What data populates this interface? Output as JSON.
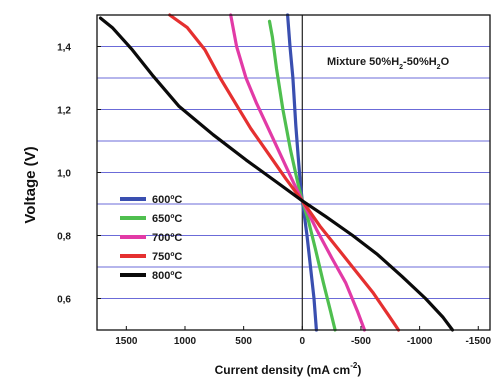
{
  "chart_data": {
    "type": "line",
    "xlabel": "Current density (mA cm",
    "xlabel_superscript": "-2",
    "xlabel_suffix": ")",
    "ylabel": "Voltage (V)",
    "x_reversed": true,
    "xlim": [
      1750,
      -1600
    ],
    "ylim": [
      0.5,
      1.5
    ],
    "x_ticks": [
      1500,
      1000,
      500,
      0,
      -500,
      -1000,
      -1500
    ],
    "y_ticks": [
      0.6,
      0.8,
      1.0,
      1.2,
      1.4
    ],
    "y_tick_labels": [
      "0,6",
      "0,8",
      "1,0",
      "1,2",
      "1,4"
    ],
    "x_tick_labels": [
      "1500",
      "1000",
      "500",
      "0",
      "-500",
      "-1000",
      "-1500"
    ],
    "horizontal_gridlines": [
      0.6,
      0.7,
      0.8,
      0.9,
      1.0,
      1.1,
      1.2,
      1.3,
      1.4
    ],
    "grid_color": "#6b6bd8",
    "zero_line": 0,
    "annotation": {
      "parts": [
        {
          "text": "Mixture 50%H",
          "sub": false
        },
        {
          "text": "2",
          "sub": true
        },
        {
          "text": "-50%H",
          "sub": false
        },
        {
          "text": "2",
          "sub": true
        },
        {
          "text": "O",
          "sub": false
        }
      ]
    },
    "legend_position": "lower-left",
    "series": [
      {
        "name": "600ºC",
        "color": "#3a4fb0",
        "points": [
          [
            -120,
            0.5
          ],
          [
            -100,
            0.6
          ],
          [
            -70,
            0.7
          ],
          [
            -40,
            0.8
          ],
          [
            -15,
            0.87
          ],
          [
            0,
            0.91
          ],
          [
            15,
            0.96
          ],
          [
            35,
            1.05
          ],
          [
            55,
            1.15
          ],
          [
            80,
            1.3
          ],
          [
            105,
            1.4
          ],
          [
            125,
            1.5
          ]
        ]
      },
      {
        "name": "650ºC",
        "color": "#4fbf4f",
        "points": [
          [
            -280,
            0.5
          ],
          [
            -240,
            0.56
          ],
          [
            -180,
            0.65
          ],
          [
            -110,
            0.76
          ],
          [
            -50,
            0.85
          ],
          [
            0,
            0.91
          ],
          [
            40,
            0.97
          ],
          [
            100,
            1.07
          ],
          [
            165,
            1.2
          ],
          [
            220,
            1.33
          ],
          [
            255,
            1.43
          ],
          [
            280,
            1.48
          ]
        ]
      },
      {
        "name": "700ºC",
        "color": "#e23aa6",
        "points": [
          [
            -530,
            0.5
          ],
          [
            -470,
            0.56
          ],
          [
            -370,
            0.65
          ],
          [
            -250,
            0.73
          ],
          [
            -120,
            0.82
          ],
          [
            0,
            0.91
          ],
          [
            90,
            0.98
          ],
          [
            190,
            1.06
          ],
          [
            290,
            1.14
          ],
          [
            390,
            1.22
          ],
          [
            480,
            1.3
          ],
          [
            560,
            1.4
          ],
          [
            610,
            1.5
          ]
        ]
      },
      {
        "name": "750ºC",
        "color": "#e53030",
        "points": [
          [
            -820,
            0.5
          ],
          [
            -730,
            0.55
          ],
          [
            -600,
            0.62
          ],
          [
            -450,
            0.69
          ],
          [
            -300,
            0.76
          ],
          [
            -150,
            0.83
          ],
          [
            0,
            0.91
          ],
          [
            140,
            0.98
          ],
          [
            290,
            1.06
          ],
          [
            440,
            1.14
          ],
          [
            570,
            1.22
          ],
          [
            700,
            1.3
          ],
          [
            830,
            1.39
          ],
          [
            980,
            1.46
          ],
          [
            1130,
            1.5
          ]
        ]
      },
      {
        "name": "800ºC",
        "color": "#0a0a0a",
        "points": [
          [
            -1280,
            0.5
          ],
          [
            -1200,
            0.54
          ],
          [
            -1050,
            0.6
          ],
          [
            -850,
            0.67
          ],
          [
            -640,
            0.74
          ],
          [
            -430,
            0.8
          ],
          [
            -200,
            0.86
          ],
          [
            0,
            0.91
          ],
          [
            220,
            0.97
          ],
          [
            480,
            1.04
          ],
          [
            760,
            1.12
          ],
          [
            1050,
            1.21
          ],
          [
            1280,
            1.31
          ],
          [
            1450,
            1.39
          ],
          [
            1620,
            1.46
          ],
          [
            1720,
            1.49
          ]
        ]
      }
    ]
  }
}
